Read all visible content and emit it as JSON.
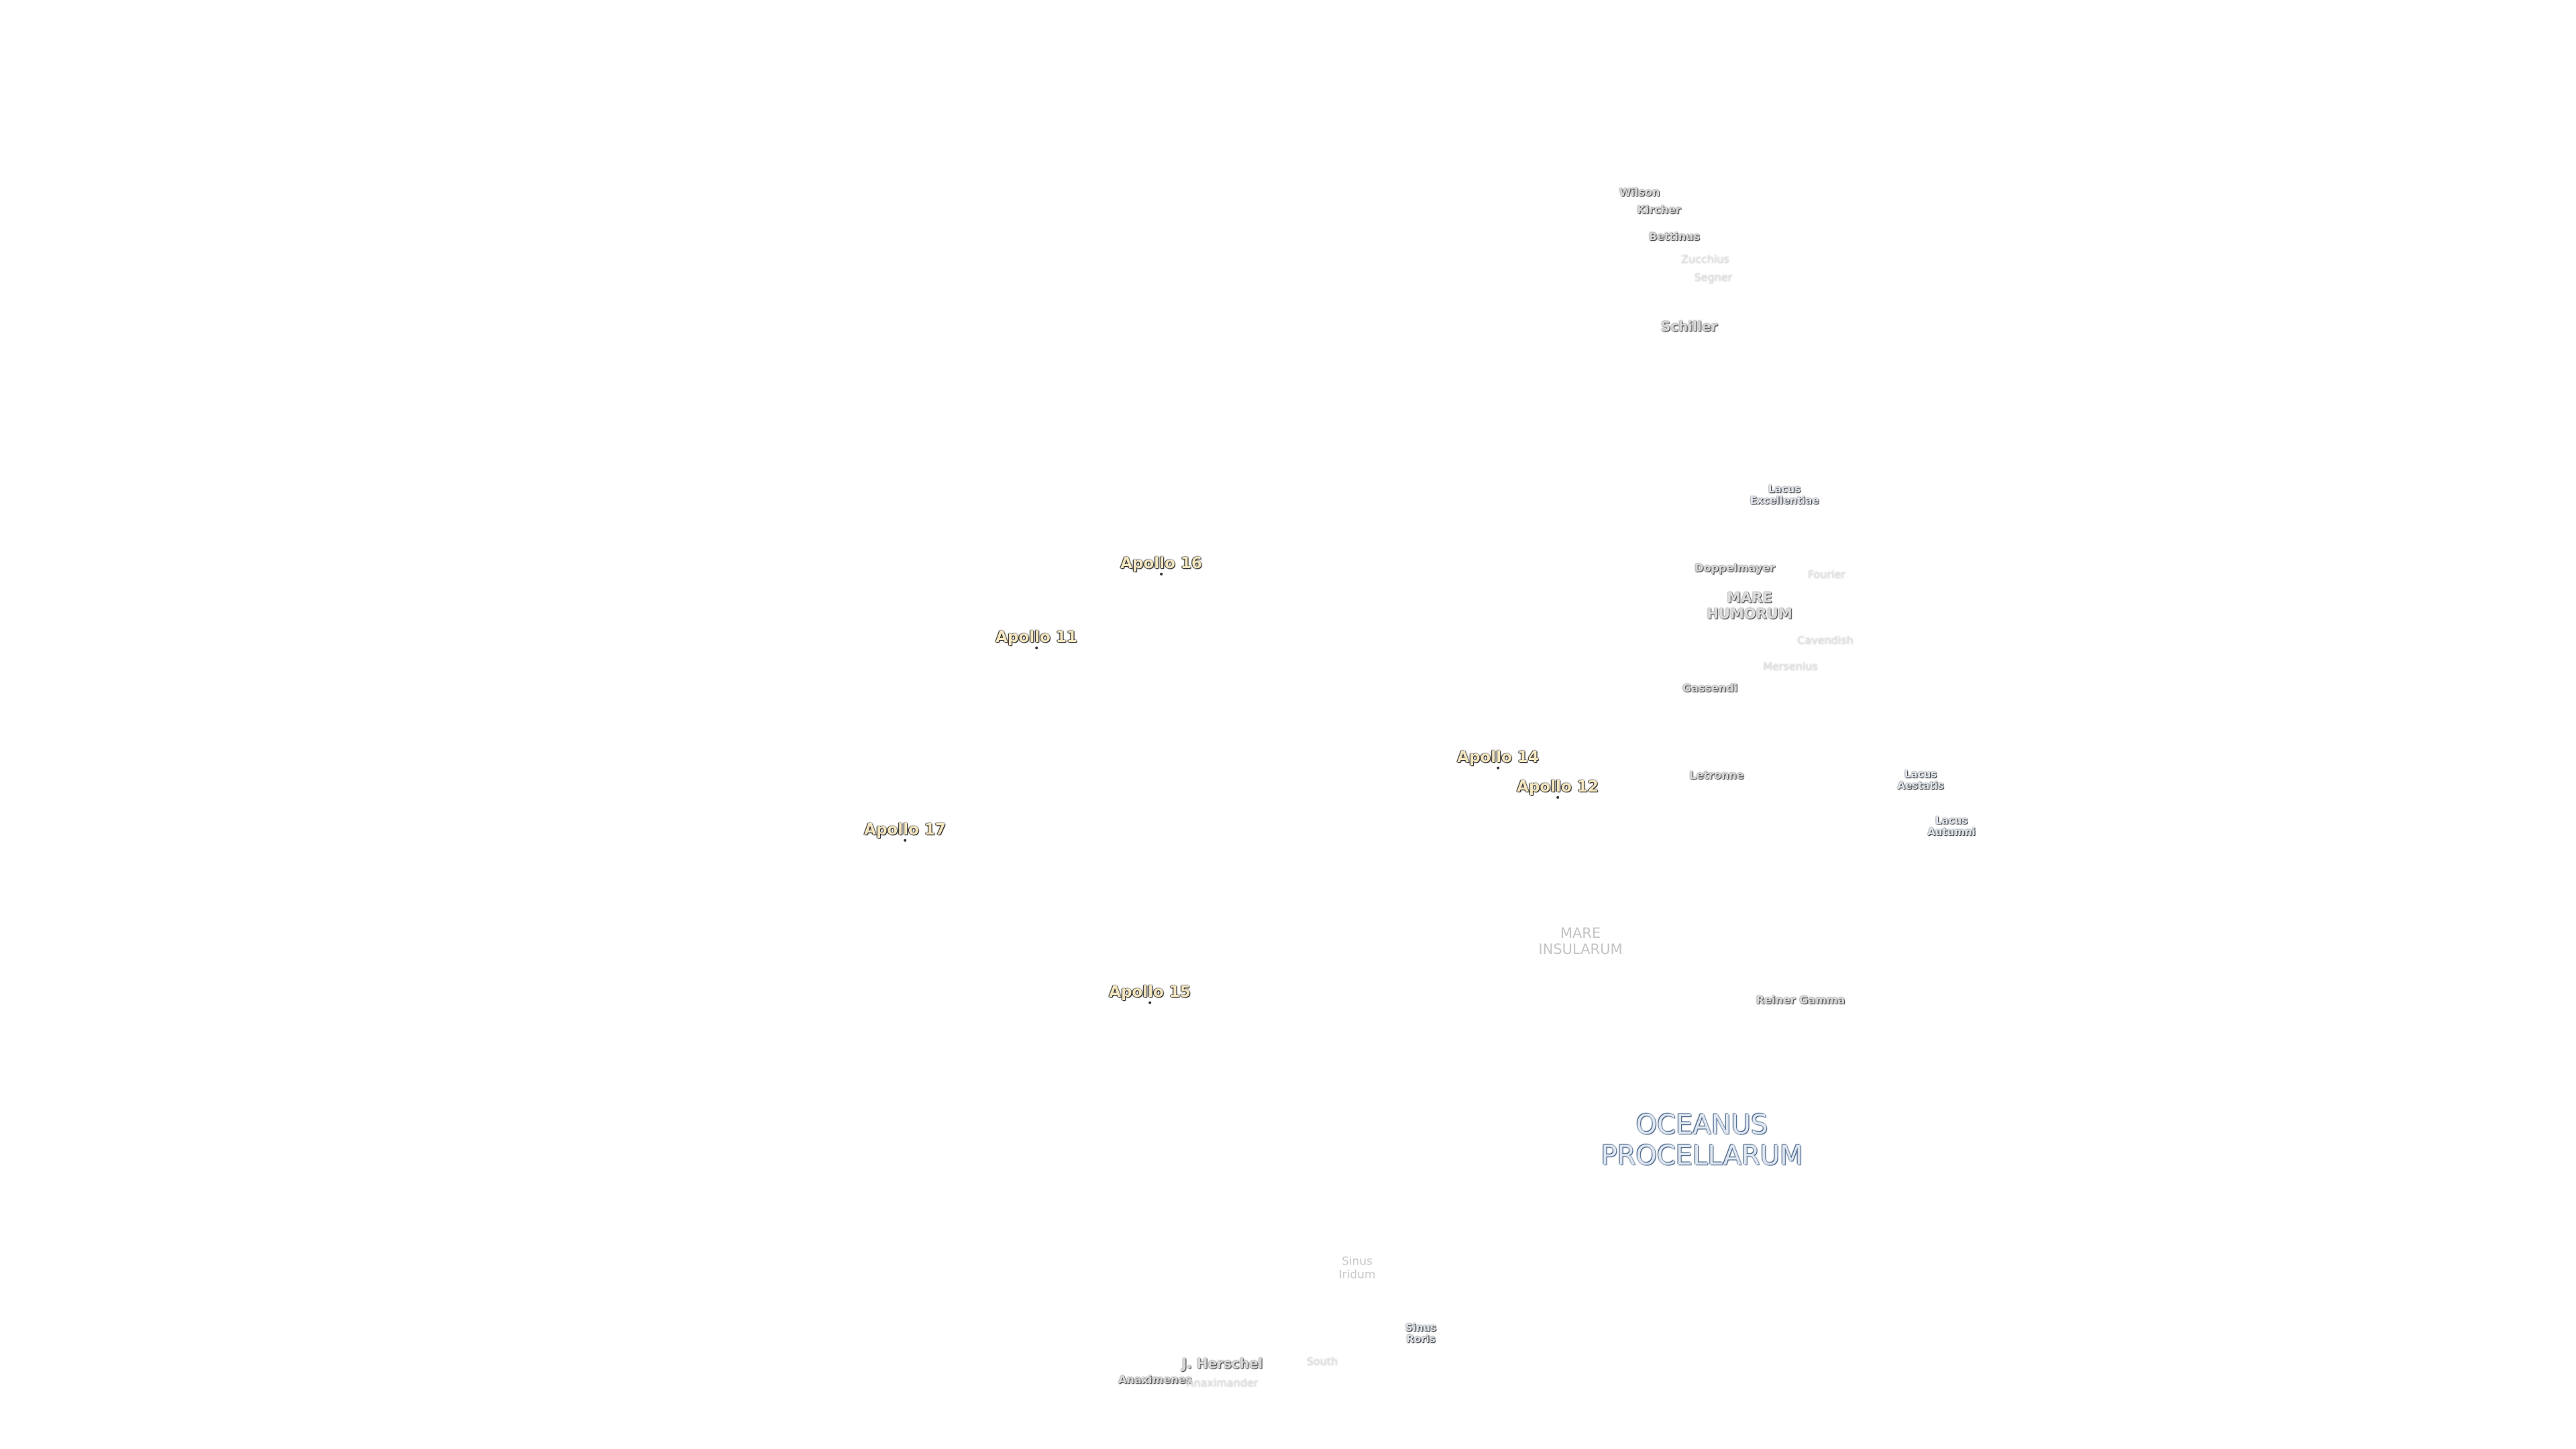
{
  "craters": [
    "Wilson",
    "Kircher",
    "Bettinus",
    "Zucchius",
    "Segner",
    "Schiller",
    "Doppelmayer",
    "Fourier",
    "Cavendish",
    "Mersenius",
    "Gassendi",
    "Letronne",
    "Reiner Gamma",
    "J. Herschel",
    "South",
    "Anaximenes",
    "Anaximander"
  ],
  "maria": [
    [
      "MARE",
      "HUMORUM"
    ],
    [
      "MARE",
      "INSULARUM"
    ],
    [
      "OCEANUS",
      "PROCELLARUM"
    ]
  ],
  "lakes_bays": [
    [
      "Lacus",
      "Excellentiae"
    ],
    [
      "Lacus",
      "Aestatis"
    ],
    [
      "Lacus",
      "Autumni"
    ],
    [
      "Sinus",
      "Iridum"
    ],
    [
      "Sinus",
      "Roris"
    ]
  ],
  "apollo_sites": [
    "Apollo 16",
    "Apollo 11",
    "Apollo 14",
    "Apollo 12",
    "Apollo 17",
    "Apollo 15"
  ]
}
